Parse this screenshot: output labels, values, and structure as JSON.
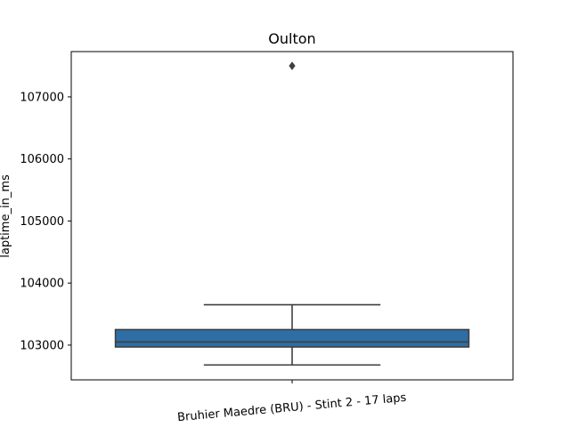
{
  "chart_data": {
    "type": "box",
    "title": "Oulton",
    "xlabel": "",
    "ylabel": "laptime_in_ms",
    "ylim": [
      102440,
      107730
    ],
    "y_ticks": [
      103000,
      104000,
      105000,
      106000,
      107000
    ],
    "categories": [
      "Bruhier Maedre (BRU) - Stint 2 - 17 laps"
    ],
    "grid": false,
    "series": [
      {
        "color": "#2e6ea4",
        "stats": {
          "whisker_low": 102680,
          "q1": 102970,
          "median": 103050,
          "q3": 103250,
          "whisker_high": 103650,
          "outliers": [
            107500
          ]
        }
      }
    ]
  }
}
